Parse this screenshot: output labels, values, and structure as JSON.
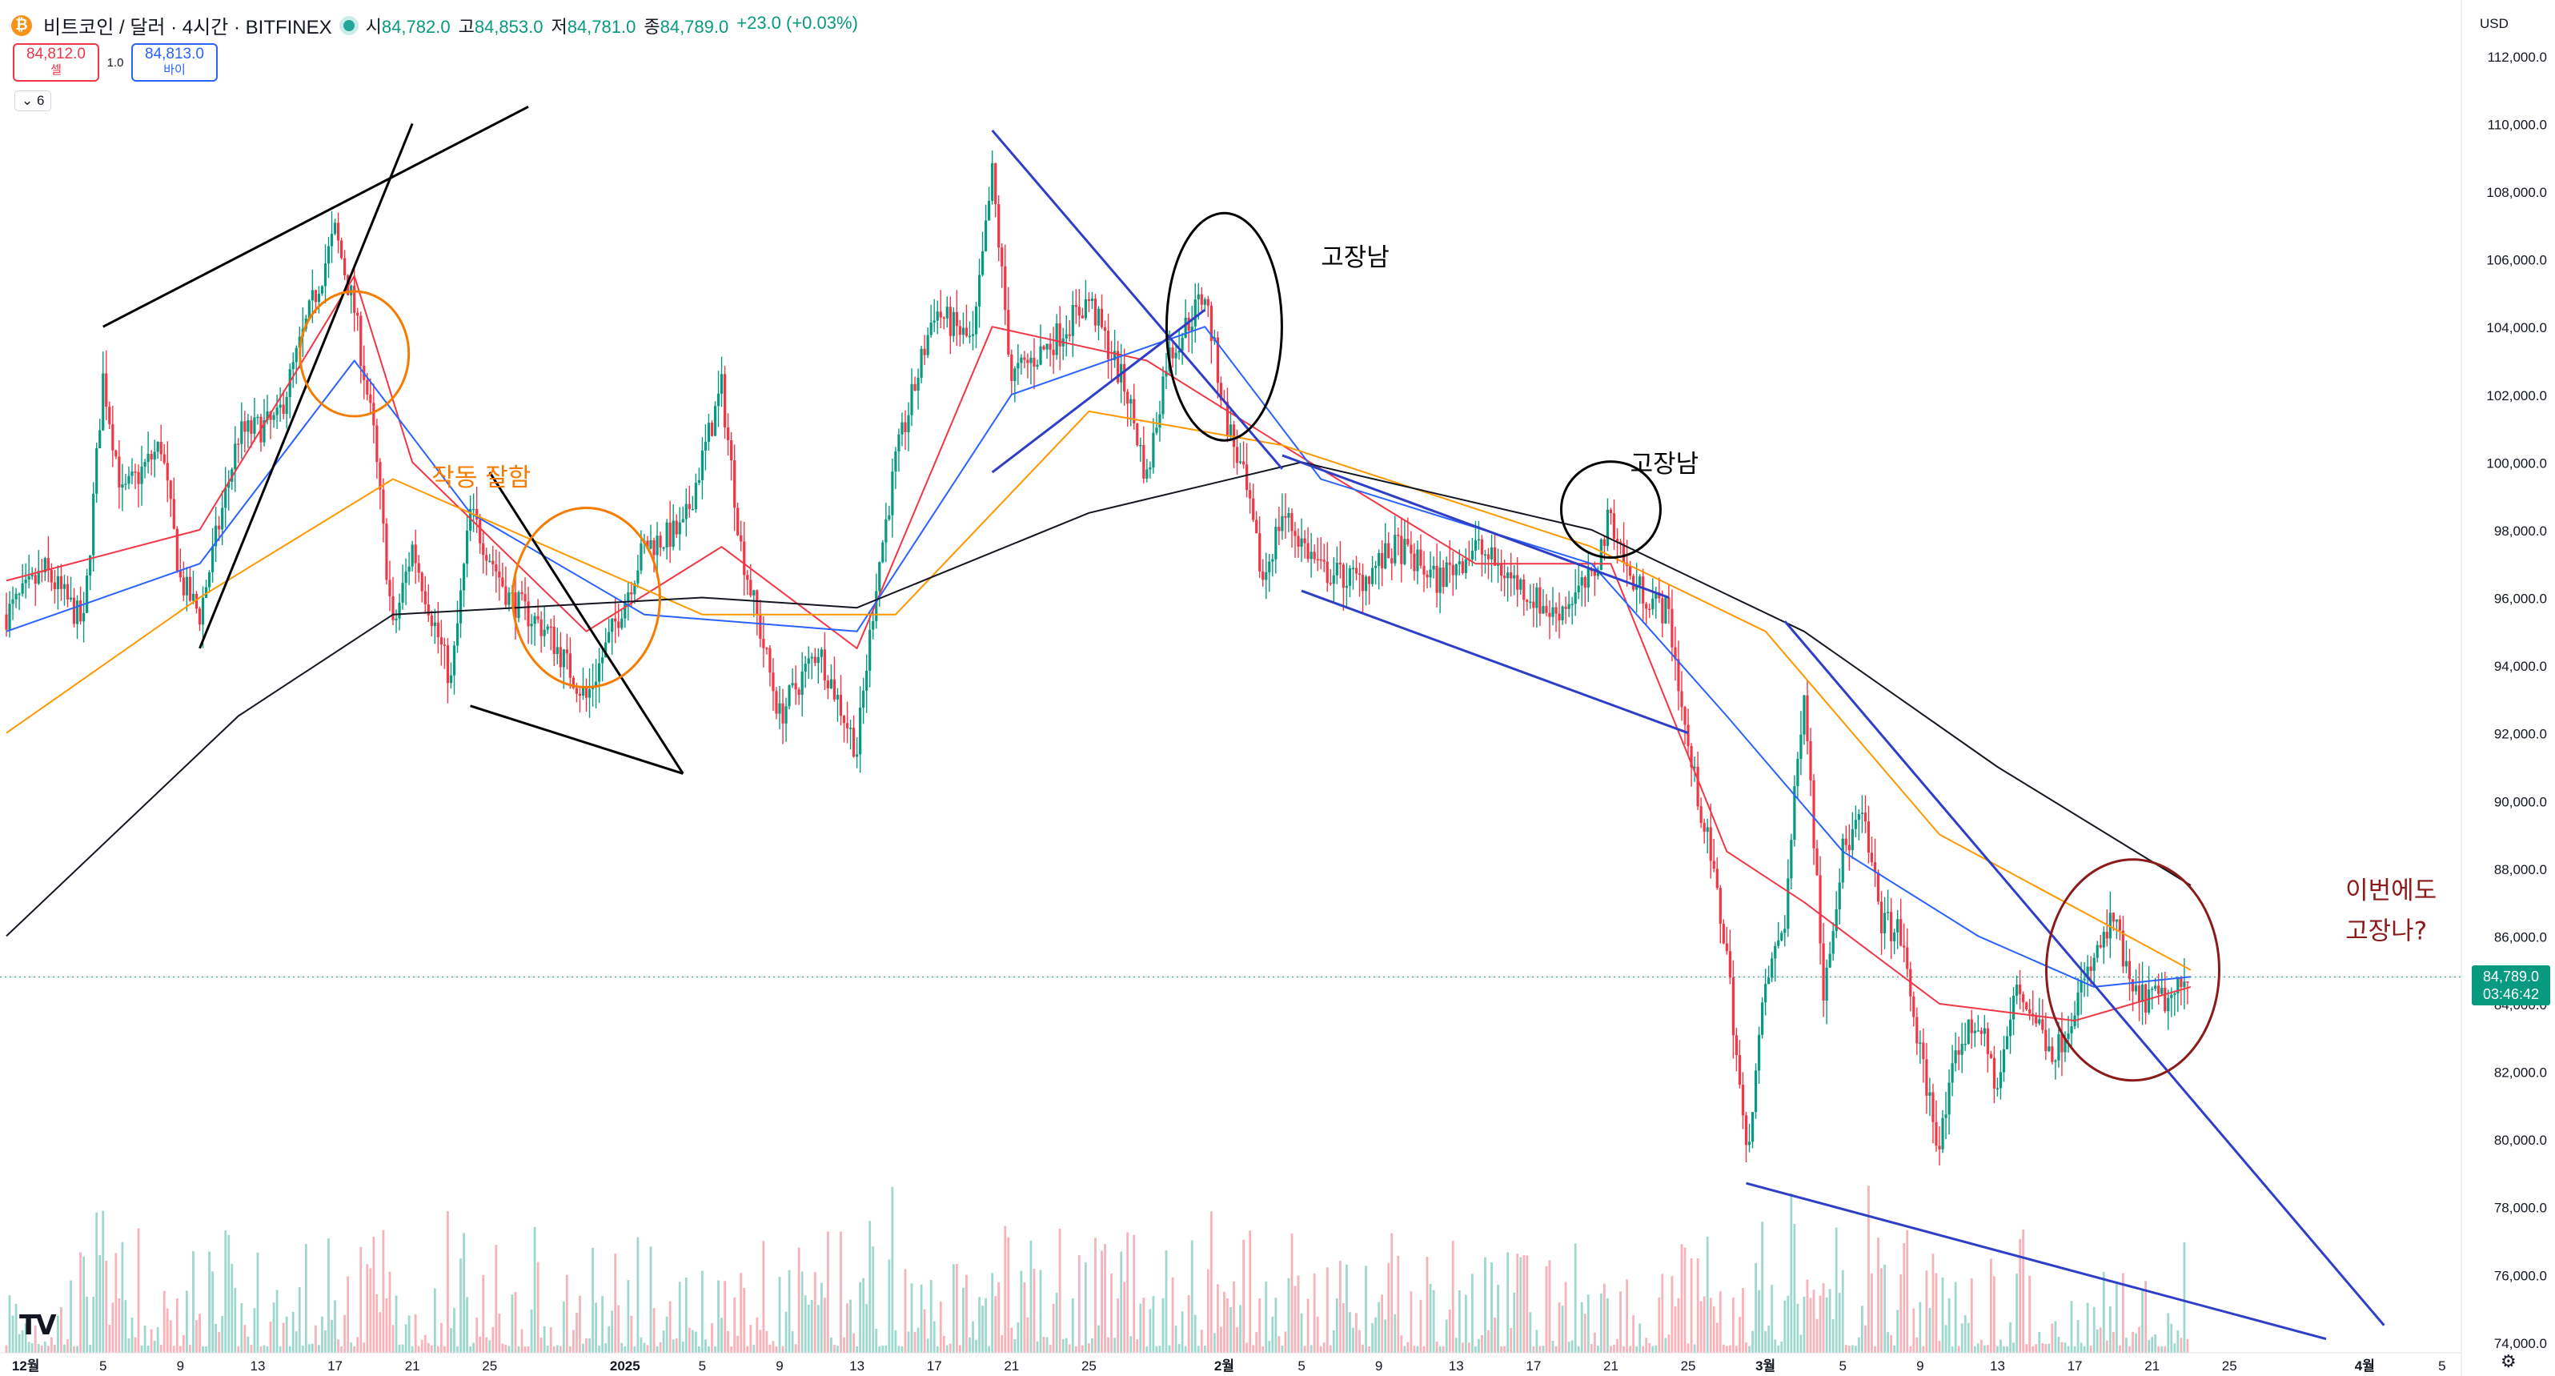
{
  "header": {
    "coin_icon": "bitcoin-icon",
    "coin_glyph": "₿",
    "symbol": "비트코인 / 달러 · 4시간 · BITFINEX",
    "ohlc": [
      {
        "k": "시",
        "v": "84,782.0"
      },
      {
        "k": "고",
        "v": "84,853.0"
      },
      {
        "k": "저",
        "v": "84,781.0"
      },
      {
        "k": "종",
        "v": "84,789.0"
      },
      {
        "k": "",
        "v": "+23.0 (+0.03%)"
      }
    ]
  },
  "trade": {
    "sell_price": "84,812.0",
    "sell_label": "셀",
    "spread": "1.0",
    "buy_price": "84,813.0",
    "buy_label": "바이"
  },
  "indicator_toggle": "6",
  "currency": "USD",
  "last_price": "84,789.0",
  "countdown": "03:46:42",
  "colors": {
    "up": "#089981",
    "down": "#f23645",
    "ma_red": "#f23645",
    "ma_blue": "#2962ff",
    "ma_orange": "#ff9800",
    "ma_black": "#131722",
    "trend_blue": "#2e3ec6",
    "orange_circle": "#f57c00",
    "dark_red_circle": "#8b1a1a"
  },
  "chart_data": {
    "type": "candlestick",
    "title": "",
    "x_labels": [
      {
        "t": "2024-12-01",
        "l": "12월"
      },
      {
        "t": "2024-12-05",
        "l": "5"
      },
      {
        "t": "2024-12-09",
        "l": "9"
      },
      {
        "t": "2024-12-13",
        "l": "13"
      },
      {
        "t": "2024-12-17",
        "l": "17"
      },
      {
        "t": "2024-12-21",
        "l": "21"
      },
      {
        "t": "2024-12-25",
        "l": "25"
      },
      {
        "t": "2025-01-01",
        "l": "2025"
      },
      {
        "t": "2025-01-05",
        "l": "5"
      },
      {
        "t": "2025-01-09",
        "l": "9"
      },
      {
        "t": "2025-01-13",
        "l": "13"
      },
      {
        "t": "2025-01-17",
        "l": "17"
      },
      {
        "t": "2025-01-21",
        "l": "21"
      },
      {
        "t": "2025-01-25",
        "l": "25"
      },
      {
        "t": "2025-02-01",
        "l": "2월"
      },
      {
        "t": "2025-02-05",
        "l": "5"
      },
      {
        "t": "2025-02-09",
        "l": "9"
      },
      {
        "t": "2025-02-13",
        "l": "13"
      },
      {
        "t": "2025-02-17",
        "l": "17"
      },
      {
        "t": "2025-02-21",
        "l": "21"
      },
      {
        "t": "2025-02-25",
        "l": "25"
      },
      {
        "t": "2025-03-01",
        "l": "3월"
      },
      {
        "t": "2025-03-05",
        "l": "5"
      },
      {
        "t": "2025-03-09",
        "l": "9"
      },
      {
        "t": "2025-03-13",
        "l": "13"
      },
      {
        "t": "2025-03-17",
        "l": "17"
      },
      {
        "t": "2025-03-21",
        "l": "21"
      },
      {
        "t": "2025-03-25",
        "l": "25"
      },
      {
        "t": "2025-04-01",
        "l": "4월"
      },
      {
        "t": "2025-04-05",
        "l": "5"
      }
    ],
    "y_ticks": [
      74000,
      76000,
      78000,
      80000,
      82000,
      84000,
      86000,
      88000,
      90000,
      92000,
      94000,
      96000,
      98000,
      100000,
      102000,
      104000,
      106000,
      108000,
      110000,
      112000
    ],
    "y_range": [
      74000,
      113000
    ],
    "price_path": [
      [
        "2024-11-30",
        95500
      ],
      [
        "2024-12-02",
        96800
      ],
      [
        "2024-12-04",
        95200
      ],
      [
        "2024-12-05",
        102500
      ],
      [
        "2024-12-06",
        99000
      ],
      [
        "2024-12-08",
        100500
      ],
      [
        "2024-12-09",
        96500
      ],
      [
        "2024-12-10",
        95500
      ],
      [
        "2024-12-12",
        100800
      ],
      [
        "2024-12-14",
        101200
      ],
      [
        "2024-12-16",
        105000
      ],
      [
        "2024-12-17",
        106800
      ],
      [
        "2024-12-18",
        104500
      ],
      [
        "2024-12-19",
        100800
      ],
      [
        "2024-12-20",
        95000
      ],
      [
        "2024-12-21",
        97500
      ],
      [
        "2024-12-23",
        93500
      ],
      [
        "2024-12-24",
        98500
      ],
      [
        "2024-12-26",
        96000
      ],
      [
        "2024-12-28",
        95000
      ],
      [
        "2024-12-30",
        93000
      ],
      [
        "2024-12-31",
        94500
      ],
      [
        "2025-01-02",
        97500
      ],
      [
        "2025-01-04",
        98000
      ],
      [
        "2025-01-06",
        102200
      ],
      [
        "2025-01-07",
        97500
      ],
      [
        "2025-01-08",
        95000
      ],
      [
        "2025-01-09",
        92500
      ],
      [
        "2025-01-11",
        94500
      ],
      [
        "2025-01-13",
        91500
      ],
      [
        "2025-01-14",
        96500
      ],
      [
        "2025-01-15",
        100000
      ],
      [
        "2025-01-17",
        104500
      ],
      [
        "2025-01-19",
        103500
      ],
      [
        "2025-01-20",
        108500
      ],
      [
        "2025-01-21",
        102500
      ],
      [
        "2025-01-23",
        103500
      ],
      [
        "2025-01-25",
        104800
      ],
      [
        "2025-01-27",
        102000
      ],
      [
        "2025-01-28",
        99500
      ],
      [
        "2025-01-29",
        103000
      ],
      [
        "2025-01-31",
        105000
      ],
      [
        "2025-02-01",
        101500
      ],
      [
        "2025-02-02",
        99500
      ],
      [
        "2025-02-03",
        96500
      ],
      [
        "2025-02-04",
        98500
      ],
      [
        "2025-02-06",
        96800
      ],
      [
        "2025-02-08",
        96500
      ],
      [
        "2025-02-10",
        97500
      ],
      [
        "2025-02-12",
        96500
      ],
      [
        "2025-02-14",
        97500
      ],
      [
        "2025-02-16",
        96500
      ],
      [
        "2025-02-18",
        95500
      ],
      [
        "2025-02-20",
        96500
      ],
      [
        "2025-02-21",
        98500
      ],
      [
        "2025-02-22",
        96500
      ],
      [
        "2025-02-24",
        95500
      ],
      [
        "2025-02-25",
        91500
      ],
      [
        "2025-02-26",
        88800
      ],
      [
        "2025-02-27",
        85500
      ],
      [
        "2025-02-28",
        79500
      ],
      [
        "2025-03-01",
        84500
      ],
      [
        "2025-03-02",
        86500
      ],
      [
        "2025-03-03",
        93500
      ],
      [
        "2025-03-04",
        84500
      ],
      [
        "2025-03-05",
        88500
      ],
      [
        "2025-03-06",
        89500
      ],
      [
        "2025-03-07",
        86500
      ],
      [
        "2025-03-08",
        86000
      ],
      [
        "2025-03-09",
        82500
      ],
      [
        "2025-03-10",
        79800
      ],
      [
        "2025-03-11",
        82800
      ],
      [
        "2025-03-12",
        83500
      ],
      [
        "2025-03-13",
        81500
      ],
      [
        "2025-03-14",
        84500
      ],
      [
        "2025-03-16",
        82500
      ],
      [
        "2025-03-17",
        84000
      ],
      [
        "2025-03-19",
        86500
      ],
      [
        "2025-03-20",
        84200
      ],
      [
        "2025-03-22",
        84100
      ],
      [
        "2025-03-23",
        84789
      ]
    ],
    "moving_averages": [
      {
        "color": "red",
        "path": [
          [
            "2024-11-30",
            96500
          ],
          [
            "2024-12-10",
            98000
          ],
          [
            "2024-12-18",
            105500
          ],
          [
            "2024-12-21",
            100000
          ],
          [
            "2024-12-30",
            95000
          ],
          [
            "2025-01-06",
            97500
          ],
          [
            "2025-01-13",
            94500
          ],
          [
            "2025-01-20",
            104000
          ],
          [
            "2025-01-28",
            103000
          ],
          [
            "2025-02-04",
            100500
          ],
          [
            "2025-02-14",
            97000
          ],
          [
            "2025-02-21",
            97000
          ],
          [
            "2025-02-27",
            88500
          ],
          [
            "2025-03-03",
            87000
          ],
          [
            "2025-03-10",
            84000
          ],
          [
            "2025-03-17",
            83500
          ],
          [
            "2025-03-23",
            84500
          ]
        ]
      },
      {
        "color": "blue",
        "path": [
          [
            "2024-11-30",
            95000
          ],
          [
            "2024-12-10",
            97000
          ],
          [
            "2024-12-18",
            103000
          ],
          [
            "2024-12-24",
            98500
          ],
          [
            "2025-01-02",
            95500
          ],
          [
            "2025-01-13",
            95000
          ],
          [
            "2025-01-21",
            102000
          ],
          [
            "2025-01-31",
            104000
          ],
          [
            "2025-02-06",
            99500
          ],
          [
            "2025-02-20",
            97000
          ],
          [
            "2025-02-27",
            92500
          ],
          [
            "2025-03-05",
            88500
          ],
          [
            "2025-03-12",
            86000
          ],
          [
            "2025-03-18",
            84500
          ],
          [
            "2025-03-23",
            84800
          ]
        ]
      },
      {
        "color": "orange",
        "path": [
          [
            "2024-11-30",
            92000
          ],
          [
            "2024-12-10",
            96000
          ],
          [
            "2024-12-20",
            99500
          ],
          [
            "2025-01-05",
            95500
          ],
          [
            "2025-01-15",
            95500
          ],
          [
            "2025-01-25",
            101500
          ],
          [
            "2025-02-04",
            100500
          ],
          [
            "2025-02-20",
            97500
          ],
          [
            "2025-03-01",
            95000
          ],
          [
            "2025-03-10",
            89000
          ],
          [
            "2025-03-23",
            85000
          ]
        ]
      },
      {
        "color": "black",
        "path": [
          [
            "2024-11-30",
            86000
          ],
          [
            "2024-12-12",
            92500
          ],
          [
            "2024-12-20",
            95500
          ],
          [
            "2025-01-05",
            96000
          ],
          [
            "2025-01-13",
            95700
          ],
          [
            "2025-01-25",
            98500
          ],
          [
            "2025-02-05",
            100000
          ],
          [
            "2025-02-20",
            98000
          ],
          [
            "2025-03-03",
            95000
          ],
          [
            "2025-03-13",
            91000
          ],
          [
            "2025-03-23",
            87500
          ]
        ]
      }
    ],
    "trendlines": [
      {
        "color": "black",
        "from": [
          "2024-12-05",
          104000
        ],
        "to": [
          "2024-12-27",
          110500
        ]
      },
      {
        "color": "black",
        "from": [
          "2024-12-10",
          94500
        ],
        "to": [
          "2024-12-21",
          110000
        ]
      },
      {
        "color": "black",
        "from": [
          "2024-12-25",
          99700
        ],
        "to": [
          "2025-01-04",
          90800
        ]
      },
      {
        "color": "black",
        "from": [
          "2024-12-24",
          92800
        ],
        "to": [
          "2025-01-04",
          90800
        ]
      },
      {
        "color": "blue",
        "from": [
          "2025-01-20",
          109800
        ],
        "to": [
          "2025-02-04",
          99800
        ]
      },
      {
        "color": "blue",
        "from": [
          "2025-01-20",
          99700
        ],
        "to": [
          "2025-01-31",
          104500
        ]
      },
      {
        "color": "blue",
        "from": [
          "2025-02-04",
          100200
        ],
        "to": [
          "2025-02-24",
          96000
        ]
      },
      {
        "color": "blue",
        "from": [
          "2025-02-05",
          96200
        ],
        "to": [
          "2025-02-25",
          92000
        ]
      },
      {
        "color": "blue",
        "from": [
          "2025-03-02",
          95300
        ],
        "to": [
          "2025-04-02",
          74500
        ]
      },
      {
        "color": "blue",
        "from": [
          "2025-02-28",
          78700
        ],
        "to": [
          "2025-03-30",
          74100
        ]
      }
    ],
    "annotations": [
      {
        "text": "작동 잘함",
        "at": [
          "2024-12-22",
          99300
        ],
        "color": "orange"
      },
      {
        "text": "고장남",
        "at": [
          "2025-02-06",
          105800
        ],
        "color": "black"
      },
      {
        "text": "고장남",
        "at": [
          "2025-02-22",
          99700
        ],
        "color": "black"
      },
      {
        "text": "이번에도",
        "at": [
          "2025-03-31",
          87100
        ],
        "color": "darkred"
      },
      {
        "text": "고장나?",
        "at": [
          "2025-03-31",
          85900
        ],
        "color": "darkred"
      }
    ]
  }
}
